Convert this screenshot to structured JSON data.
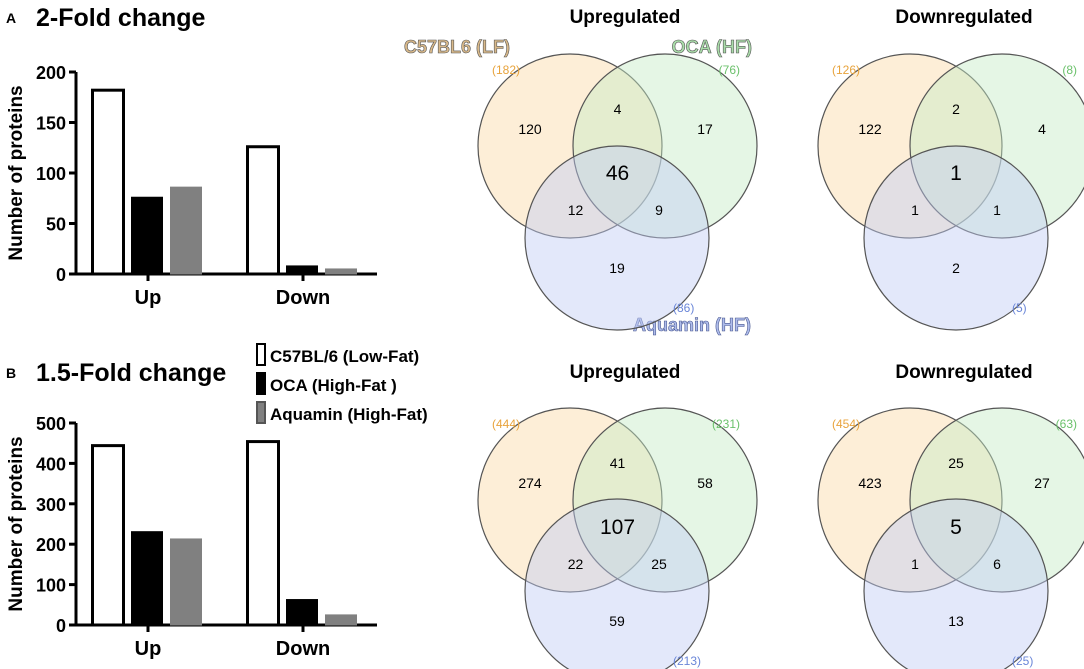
{
  "panels": {
    "a": {
      "letter": "A",
      "title": "2-Fold change",
      "header_up": "Upregulated",
      "header_down": "Downregulated"
    },
    "b": {
      "letter": "B",
      "title": "1.5-Fold change",
      "header_up": "Upregulated",
      "header_down": "Downregulated"
    }
  },
  "venn_labels": {
    "set1": "C57BL6 (LF)",
    "set2": "OCA (HF)",
    "set3": "Aquamin (HF)"
  },
  "legend": {
    "items": [
      {
        "label": "C57BL/6 (Low-Fat)",
        "color": "#ffffff"
      },
      {
        "label": "OCA (High-Fat )",
        "color": "#000000"
      },
      {
        "label": "Aquamin (High-Fat)",
        "color": "#808080"
      }
    ]
  },
  "colors": {
    "set1_fill": "#fbd9a6",
    "set2_fill": "#c6ebc6",
    "set3_fill": "#c2cdf3",
    "set1_text": "#e8a33c",
    "set2_text": "#6bc16b",
    "set3_text": "#6a86d8",
    "venn_stroke": "#555555"
  },
  "chart_data": [
    {
      "type": "bar",
      "title": "2-Fold change",
      "ylabel": "Number of proteins",
      "categories": [
        "Up",
        "Down"
      ],
      "ylim": [
        0,
        200
      ],
      "yticks": [
        0,
        50,
        100,
        150,
        200
      ],
      "series": [
        {
          "name": "C57BL/6 (Low-Fat)",
          "values": [
            182,
            126
          ]
        },
        {
          "name": "OCA (High-Fat )",
          "values": [
            76,
            8
          ]
        },
        {
          "name": "Aquamin (High-Fat)",
          "values": [
            86,
            5
          ]
        }
      ]
    },
    {
      "type": "bar",
      "title": "1.5-Fold change",
      "ylabel": "Number of proteins",
      "categories": [
        "Up",
        "Down"
      ],
      "ylim": [
        0,
        500
      ],
      "yticks": [
        0,
        100,
        200,
        300,
        400,
        500
      ],
      "series": [
        {
          "name": "C57BL/6 (Low-Fat)",
          "values": [
            444,
            454
          ]
        },
        {
          "name": "OCA (High-Fat )",
          "values": [
            231,
            63
          ]
        },
        {
          "name": "Aquamin (High-Fat)",
          "values": [
            213,
            25
          ]
        }
      ]
    },
    {
      "type": "venn",
      "title": "Upregulated",
      "fold": "2-Fold change",
      "totals": [
        "(182)",
        "(76)",
        "(86)"
      ],
      "regions": {
        "only1": "120",
        "only2": "17",
        "only3": "19",
        "r12": "4",
        "r13": "12",
        "r23": "9",
        "r123": "46"
      }
    },
    {
      "type": "venn",
      "title": "Downregulated",
      "fold": "2-Fold change",
      "totals": [
        "(126)",
        "(8)",
        "(5)"
      ],
      "regions": {
        "only1": "122",
        "only2": "4",
        "only3": "2",
        "r12": "2",
        "r13": "1",
        "r23": "1",
        "r123": "1"
      }
    },
    {
      "type": "venn",
      "title": "Upregulated",
      "fold": "1.5-Fold change",
      "totals": [
        "(444)",
        "(231)",
        "(213)"
      ],
      "regions": {
        "only1": "274",
        "only2": "58",
        "only3": "59",
        "r12": "41",
        "r13": "22",
        "r23": "25",
        "r123": "107"
      }
    },
    {
      "type": "venn",
      "title": "Downregulated",
      "fold": "1.5-Fold change",
      "totals": [
        "(454)",
        "(63)",
        "(25)"
      ],
      "regions": {
        "only1": "423",
        "only2": "27",
        "only3": "13",
        "r12": "25",
        "r13": "1",
        "r23": "6",
        "r123": "5"
      }
    }
  ]
}
